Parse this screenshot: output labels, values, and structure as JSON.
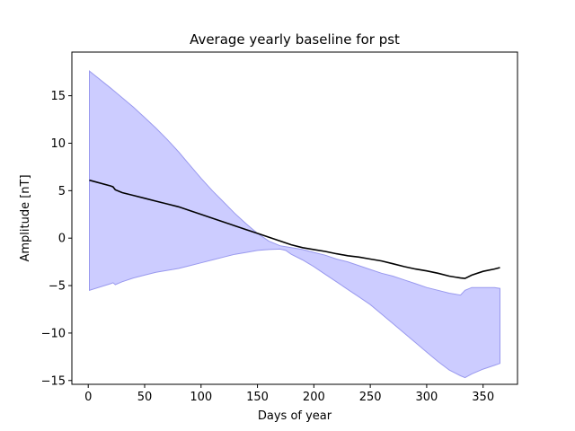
{
  "chart_data": {
    "type": "line",
    "title": "Average yearly baseline for pst",
    "xlabel": "Days of year",
    "ylabel": "Amplitude [nT]",
    "xlim": [
      -14.5,
      380.5
    ],
    "ylim": [
      -15.4,
      19.6
    ],
    "xticks": [
      0,
      50,
      100,
      150,
      200,
      250,
      300,
      350
    ],
    "yticks": [
      -15,
      -10,
      -5,
      0,
      5,
      10,
      15
    ],
    "grid": false,
    "legend": "none",
    "colors": {
      "mean_line": "#000000",
      "band_fill": "#ccccff",
      "band_edge": "#9999ee"
    },
    "series": [
      {
        "role": "mean",
        "x": [
          1,
          20,
          22,
          24,
          30,
          40,
          50,
          60,
          70,
          80,
          90,
          100,
          110,
          120,
          130,
          140,
          150,
          160,
          170,
          180,
          190,
          200,
          210,
          220,
          230,
          240,
          250,
          260,
          270,
          280,
          290,
          300,
          310,
          320,
          330,
          334,
          340,
          350,
          360,
          365
        ],
        "values": [
          6.1,
          5.5,
          5.4,
          5.1,
          4.8,
          4.5,
          4.2,
          3.9,
          3.6,
          3.3,
          2.9,
          2.5,
          2.1,
          1.7,
          1.3,
          0.9,
          0.5,
          0.1,
          -0.3,
          -0.7,
          -1.0,
          -1.2,
          -1.4,
          -1.65,
          -1.85,
          -2.0,
          -2.2,
          -2.4,
          -2.7,
          -3.0,
          -3.25,
          -3.45,
          -3.7,
          -4.0,
          -4.2,
          -4.25,
          -3.9,
          -3.5,
          -3.25,
          -3.1
        ]
      },
      {
        "role": "band_upper",
        "x": [
          1,
          20,
          30,
          40,
          50,
          60,
          70,
          80,
          90,
          100,
          110,
          120,
          130,
          140,
          150,
          160,
          170,
          180,
          190,
          200,
          210,
          220,
          230,
          240,
          250,
          260,
          270,
          280,
          290,
          300,
          310,
          320,
          330,
          334,
          340,
          350,
          360,
          365
        ],
        "values": [
          17.6,
          15.8,
          14.8,
          13.8,
          12.7,
          11.6,
          10.4,
          9.1,
          7.7,
          6.3,
          5.0,
          3.8,
          2.6,
          1.5,
          0.5,
          -0.3,
          -0.8,
          -1.0,
          -1.2,
          -1.5,
          -1.8,
          -2.2,
          -2.5,
          -2.9,
          -3.3,
          -3.7,
          -4.0,
          -4.4,
          -4.8,
          -5.2,
          -5.5,
          -5.8,
          -6.0,
          -5.5,
          -5.2,
          -5.2,
          -5.2,
          -5.3
        ]
      },
      {
        "role": "band_lower",
        "x": [
          1,
          20,
          22,
          24,
          30,
          40,
          50,
          60,
          70,
          80,
          90,
          100,
          110,
          120,
          130,
          140,
          150,
          160,
          170,
          175,
          180,
          190,
          200,
          210,
          220,
          230,
          240,
          250,
          260,
          270,
          280,
          290,
          300,
          310,
          320,
          330,
          334,
          340,
          350,
          360,
          365
        ],
        "values": [
          -5.5,
          -4.8,
          -4.7,
          -4.9,
          -4.6,
          -4.2,
          -3.9,
          -3.6,
          -3.4,
          -3.2,
          -2.9,
          -2.6,
          -2.3,
          -2.0,
          -1.7,
          -1.5,
          -1.3,
          -1.2,
          -1.15,
          -1.3,
          -1.7,
          -2.3,
          -3.0,
          -3.8,
          -4.6,
          -5.4,
          -6.2,
          -7.0,
          -8.0,
          -9.0,
          -10.0,
          -11.0,
          -12.0,
          -13.0,
          -13.9,
          -14.5,
          -14.7,
          -14.3,
          -13.8,
          -13.4,
          -13.2
        ]
      }
    ]
  }
}
